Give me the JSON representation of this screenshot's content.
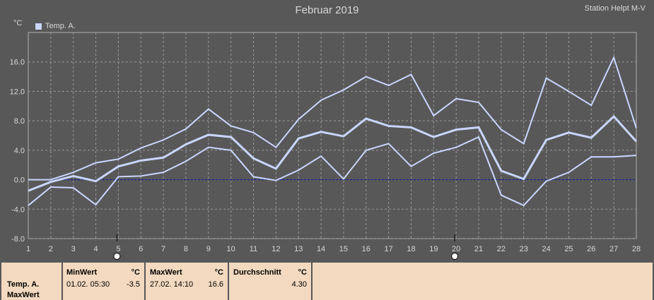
{
  "title": "Februar 2019",
  "station": "Station Helpt M-V",
  "unit": "°C",
  "legend": "Temp. A.",
  "chart_data": {
    "type": "line",
    "x": [
      1,
      2,
      3,
      4,
      5,
      6,
      7,
      8,
      9,
      10,
      11,
      12,
      13,
      14,
      15,
      16,
      17,
      18,
      19,
      20,
      21,
      22,
      23,
      24,
      25,
      26,
      27,
      28
    ],
    "xlim": [
      1,
      28
    ],
    "ylim": [
      -8,
      20
    ],
    "yticks": [
      "-8.0",
      "-4.0",
      "0.0",
      "4.0",
      "8.0",
      "12.0",
      "16.0"
    ],
    "xticks": [
      "1",
      "2",
      "3",
      "4",
      "5",
      "6",
      "7",
      "8",
      "9",
      "10",
      "11",
      "12",
      "13",
      "14",
      "15",
      "16",
      "17",
      "18",
      "19",
      "20",
      "21",
      "22",
      "23",
      "24",
      "25",
      "26",
      "27",
      "28"
    ],
    "grid": true,
    "series": [
      {
        "key": "max",
        "values": [
          0.0,
          0.0,
          1.0,
          2.3,
          2.8,
          4.3,
          5.4,
          6.9,
          9.6,
          7.3,
          6.4,
          4.4,
          8.2,
          10.8,
          12.2,
          14.0,
          12.8,
          14.3,
          8.7,
          11.0,
          10.5,
          6.8,
          4.9,
          13.8,
          12.0,
          10.1,
          16.6,
          7.0
        ]
      },
      {
        "key": "avg",
        "values": [
          -1.5,
          -0.3,
          0.5,
          -0.2,
          1.8,
          2.6,
          3.0,
          4.8,
          6.1,
          5.8,
          2.9,
          1.5,
          5.6,
          6.5,
          5.9,
          8.3,
          7.3,
          7.1,
          5.8,
          6.8,
          7.1,
          1.2,
          0.1,
          5.4,
          6.4,
          5.7,
          8.6,
          5.2
        ]
      },
      {
        "key": "min",
        "values": [
          -3.5,
          -1.0,
          -1.1,
          -3.4,
          0.4,
          0.5,
          1.0,
          2.5,
          4.4,
          4.0,
          0.4,
          -0.1,
          1.3,
          3.2,
          0.1,
          4.0,
          4.9,
          1.8,
          3.6,
          4.4,
          5.8,
          -2.1,
          -3.5,
          -0.2,
          1.0,
          3.1,
          3.1,
          3.3
        ]
      }
    ],
    "reference_line": 0.0,
    "markers": [
      {
        "x": 5
      },
      {
        "x": 20
      }
    ]
  },
  "table": {
    "row_label_1": "Temp. A.",
    "row_label_2": "MaxWert",
    "min_header": "MinWert",
    "min_unit": "°C",
    "min_time": "01.02.  05:30",
    "min_value": "-3.5",
    "max_header": "MaxWert",
    "max_unit": "°C",
    "max_time": "27.02.  14:10",
    "max_value": "16.6",
    "avg_header": "Durchschnitt",
    "avg_unit": "°C",
    "avg_value": "4.30"
  },
  "colors": {
    "line": "#c9d6ff",
    "grid": "#9a9a9a",
    "zero_line": "#1020a0",
    "table_bg": "#f2d9bf"
  }
}
